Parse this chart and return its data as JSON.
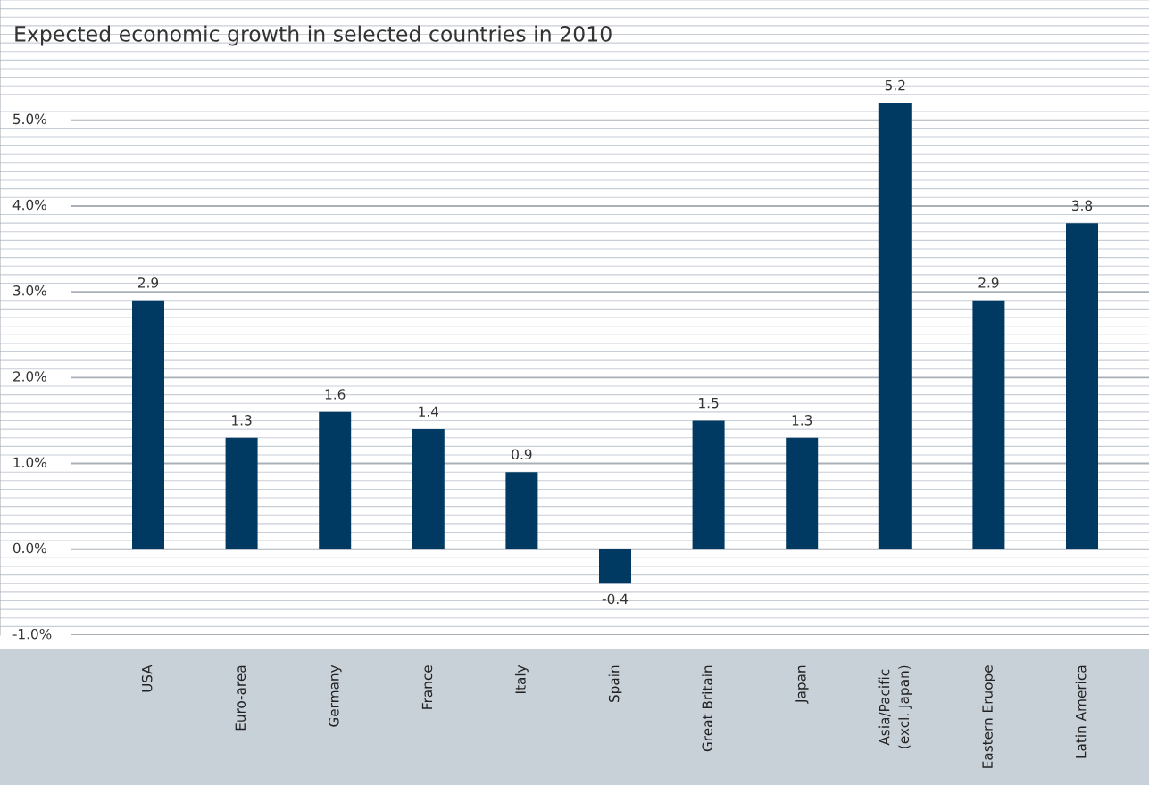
{
  "chart_data": {
    "type": "bar",
    "title": "Expected economic growth in selected countries in 2010",
    "categories": [
      "USA",
      "Euro-area",
      "Germany",
      "France",
      "Italy",
      "Spain",
      "Great Britain",
      "Japan",
      "Asia/Pacific\n(excl. Japan)",
      "Eastern Eruope",
      "Latin America"
    ],
    "values": [
      2.9,
      1.3,
      1.6,
      1.4,
      0.9,
      -0.4,
      1.5,
      1.3,
      5.2,
      2.9,
      3.8
    ],
    "color": "#003a63",
    "data_labels": true,
    "grid": true,
    "legend": false,
    "ylim": [
      -1.0,
      6.4
    ],
    "yticks": [
      {
        "value": -1,
        "label": "-1.0%"
      },
      {
        "value": 0,
        "label": "0.0%"
      },
      {
        "value": 1,
        "label": "1.0%"
      },
      {
        "value": 2,
        "label": "2.0%"
      },
      {
        "value": 3,
        "label": "3.0%"
      },
      {
        "value": 4,
        "label": "4.0%"
      },
      {
        "value": 5,
        "label": "5.0%"
      }
    ]
  }
}
